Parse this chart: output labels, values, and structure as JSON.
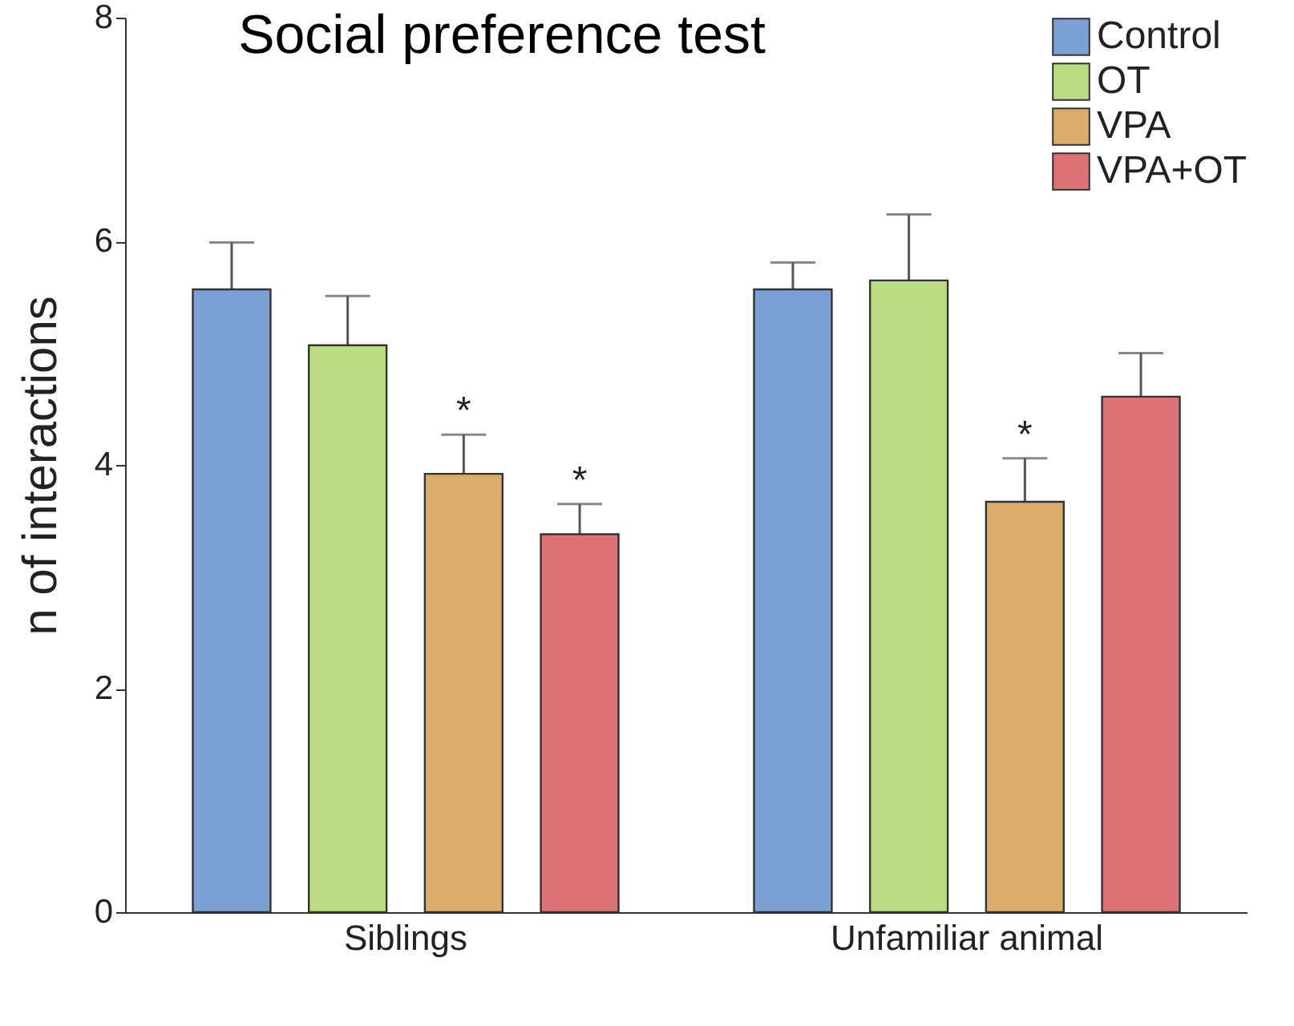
{
  "chart_data": {
    "type": "bar",
    "title": "Social preference test",
    "ylabel": "n of interactions",
    "categories": [
      "Siblings",
      "Unfamiliar animal"
    ],
    "ylim": [
      0,
      8
    ],
    "yticks": [
      0,
      2,
      4,
      6,
      8
    ],
    "legend": "top right",
    "series": [
      {
        "name": "Control",
        "color": "#7ba0d4",
        "values": [
          5.57,
          5.57
        ],
        "errors": [
          0.42,
          0.24
        ]
      },
      {
        "name": "OT",
        "color": "#bbdc82",
        "values": [
          5.07,
          5.65
        ],
        "errors": [
          0.44,
          0.59
        ]
      },
      {
        "name": "VPA",
        "color": "#dcac6a",
        "values": [
          3.92,
          3.67
        ],
        "errors": [
          0.35,
          0.39
        ],
        "value_labels": [
          "*",
          "*"
        ]
      },
      {
        "name": "VPA+OT",
        "color": "#dc7176",
        "values": [
          3.38,
          4.61
        ],
        "errors": [
          0.27,
          0.39
        ],
        "value_labels": [
          "*",
          null
        ]
      }
    ]
  }
}
